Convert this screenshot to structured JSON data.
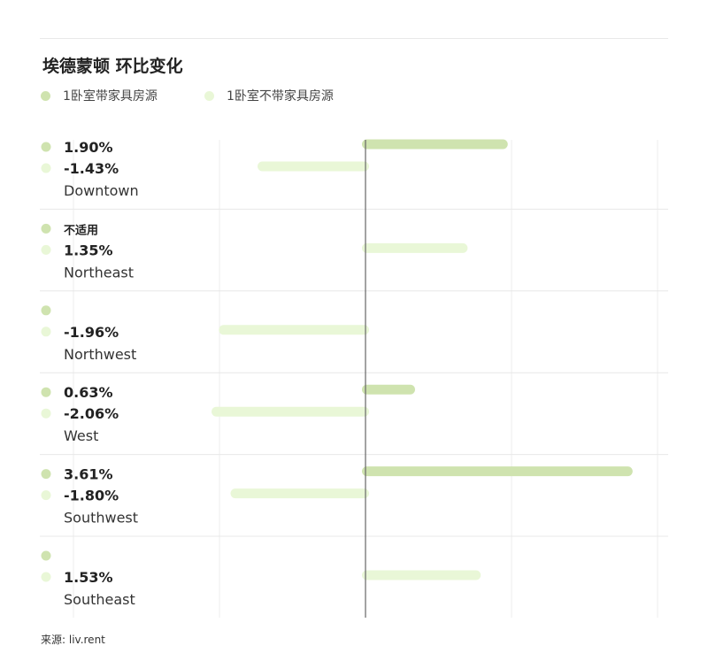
{
  "title": "埃德蒙顿 环比变化",
  "source": "来源: liv.rent",
  "colors": {
    "furnished": "#cfe3af",
    "unfurnished": "#e9f7d7",
    "grid": "#ececec",
    "zero_line": "#666666",
    "separator": "#e8e8e8"
  },
  "legend": [
    {
      "label": "1卧室带家具房源",
      "color": "#cfe3af"
    },
    {
      "label": "1卧室不带家具房源",
      "color": "#e9f7d7"
    }
  ],
  "chart_data": {
    "type": "bar",
    "orientation": "horizontal",
    "unit": "%",
    "xlim": [
      -4,
      4
    ],
    "grid": true,
    "categories": [
      "Downtown",
      "Northeast",
      "Northwest",
      "West",
      "Southwest",
      "Southeast"
    ],
    "series": [
      {
        "name": "1卧室带家具房源",
        "values": [
          1.9,
          null,
          null,
          0.63,
          3.61,
          null
        ],
        "labels": [
          "1.90%",
          "不适用",
          "",
          "0.63%",
          "3.61%",
          ""
        ]
      },
      {
        "name": "1卧室不带家具房源",
        "values": [
          -1.43,
          1.35,
          -1.96,
          -2.06,
          -1.8,
          1.53
        ],
        "labels": [
          "-1.43%",
          "1.35%",
          "-1.96%",
          "-2.06%",
          "-1.80%",
          "1.53%"
        ]
      }
    ]
  }
}
